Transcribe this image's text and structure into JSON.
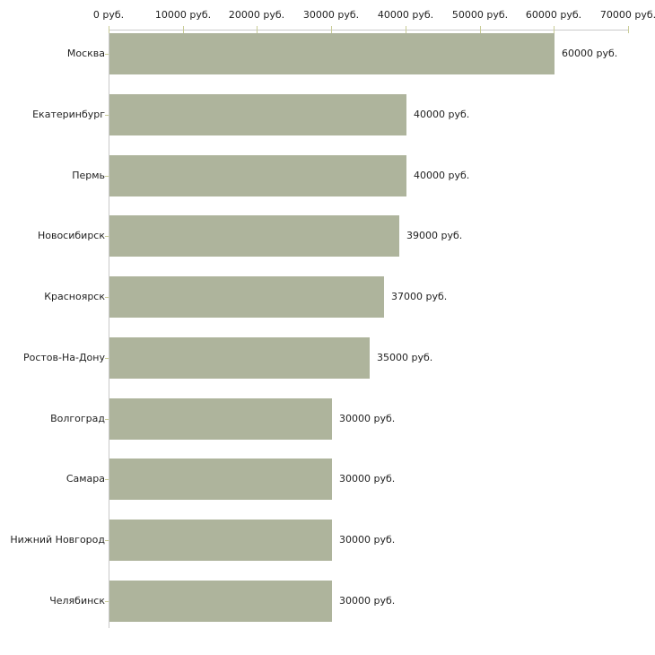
{
  "chart_data": {
    "type": "bar",
    "orientation": "horizontal",
    "title": "",
    "xlabel": "",
    "ylabel": "",
    "grid": false,
    "legend_position": "none",
    "categories": [
      "Москва",
      "Екатеринбург",
      "Пермь",
      "Новосибирск",
      "Красноярск",
      "Ростов-На-Дону",
      "Волгоград",
      "Самара",
      "Нижний Новгород",
      "Челябинск"
    ],
    "values": [
      60000,
      40000,
      40000,
      39000,
      37000,
      35000,
      30000,
      30000,
      30000,
      30000
    ],
    "value_labels": [
      "60000 руб.",
      "40000 руб.",
      "40000 руб.",
      "39000 руб.",
      "37000 руб.",
      "35000 руб.",
      "30000 руб.",
      "30000 руб.",
      "30000 руб.",
      "30000 руб."
    ],
    "x_axis": {
      "position": "top",
      "min": 0,
      "max": 70000,
      "ticks": [
        0,
        10000,
        20000,
        30000,
        40000,
        50000,
        60000,
        70000
      ],
      "tick_labels": [
        "0 руб.",
        "10000 руб.",
        "20000 руб.",
        "30000 руб.",
        "40000 руб.",
        "50000 руб.",
        "60000 руб.",
        "70000 руб."
      ]
    },
    "colors": {
      "bar_fill": "#aeb49c",
      "axis_line": "#c9c9c9",
      "tick_mark": "#c9cc96",
      "label_text": "#222222",
      "background": "#ffffff"
    }
  }
}
